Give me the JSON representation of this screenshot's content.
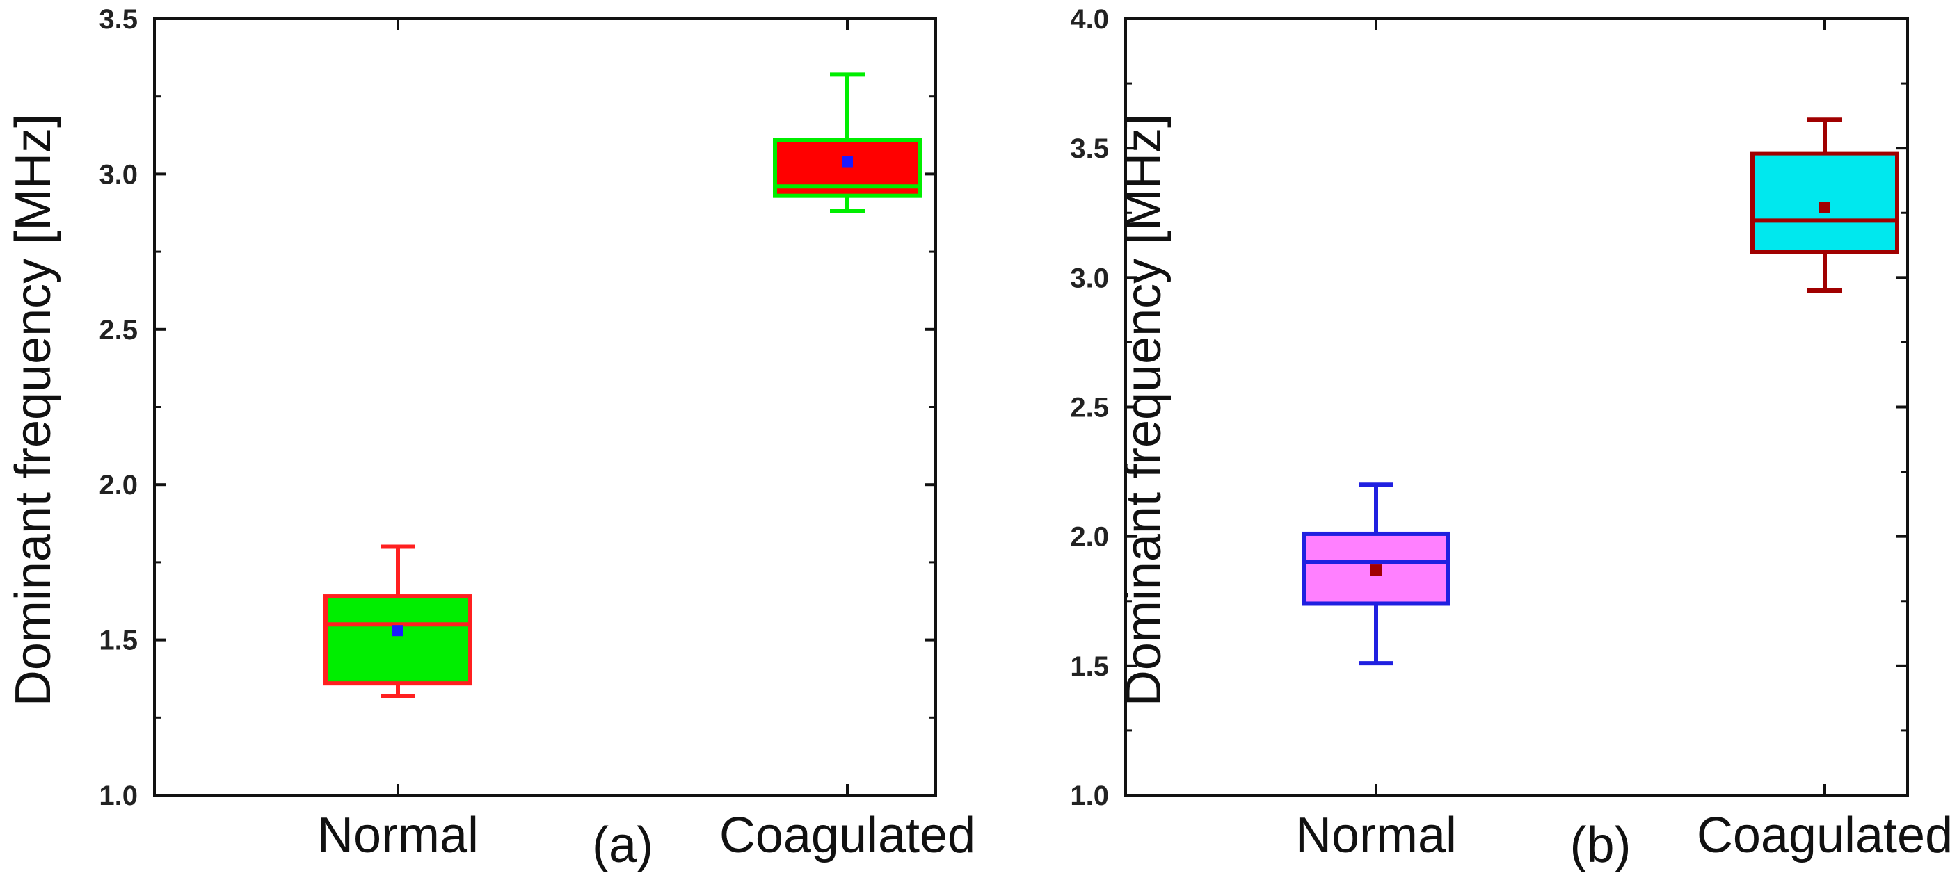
{
  "chart_data": [
    {
      "type": "box",
      "panel_label": "(a)",
      "ylabel": "Dominant frequency [MHz]",
      "ylim": [
        1.0,
        3.5
      ],
      "yticks": [
        1.0,
        1.5,
        2.0,
        2.5,
        3.0,
        3.5
      ],
      "ytick_labels": [
        "1.0",
        "1.5",
        "2.0",
        "2.5",
        "3.0",
        "3.5"
      ],
      "categories": [
        "Normal",
        "Coagulated"
      ],
      "boxes": [
        {
          "category": "Normal",
          "whisker_low": 1.32,
          "q1": 1.36,
          "median": 1.55,
          "q3": 1.64,
          "whisker_high": 1.8,
          "mean": 1.53,
          "fill": "#00ee00",
          "stroke": "#ff2020",
          "mean_color": "#1a1aff"
        },
        {
          "category": "Coagulated",
          "whisker_low": 2.88,
          "q1": 2.93,
          "median": 2.96,
          "q3": 3.11,
          "whisker_high": 3.32,
          "mean": 3.04,
          "fill": "#ff0000",
          "stroke": "#00ee00",
          "mean_color": "#1a1aff"
        }
      ]
    },
    {
      "type": "box",
      "panel_label": "(b)",
      "ylabel": "Dominant frequency [MHz]",
      "ylim": [
        1.0,
        4.0
      ],
      "yticks": [
        1.0,
        1.5,
        2.0,
        2.5,
        3.0,
        3.5,
        4.0
      ],
      "ytick_labels": [
        "1.0",
        "1.5",
        "2.0",
        "2.5",
        "3.0",
        "3.5",
        "4.0"
      ],
      "categories": [
        "Normal",
        "Coagulated"
      ],
      "boxes": [
        {
          "category": "Normal",
          "whisker_low": 1.51,
          "q1": 1.74,
          "median": 1.9,
          "q3": 2.01,
          "whisker_high": 2.2,
          "mean": 1.87,
          "fill": "#ff80ff",
          "stroke": "#2020e0",
          "mean_color": "#a00000"
        },
        {
          "category": "Coagulated",
          "whisker_low": 2.95,
          "q1": 3.1,
          "median": 3.22,
          "q3": 3.48,
          "whisker_high": 3.61,
          "mean": 3.27,
          "fill": "#00e8ee",
          "stroke": "#a00000",
          "mean_color": "#a00000"
        }
      ]
    }
  ]
}
